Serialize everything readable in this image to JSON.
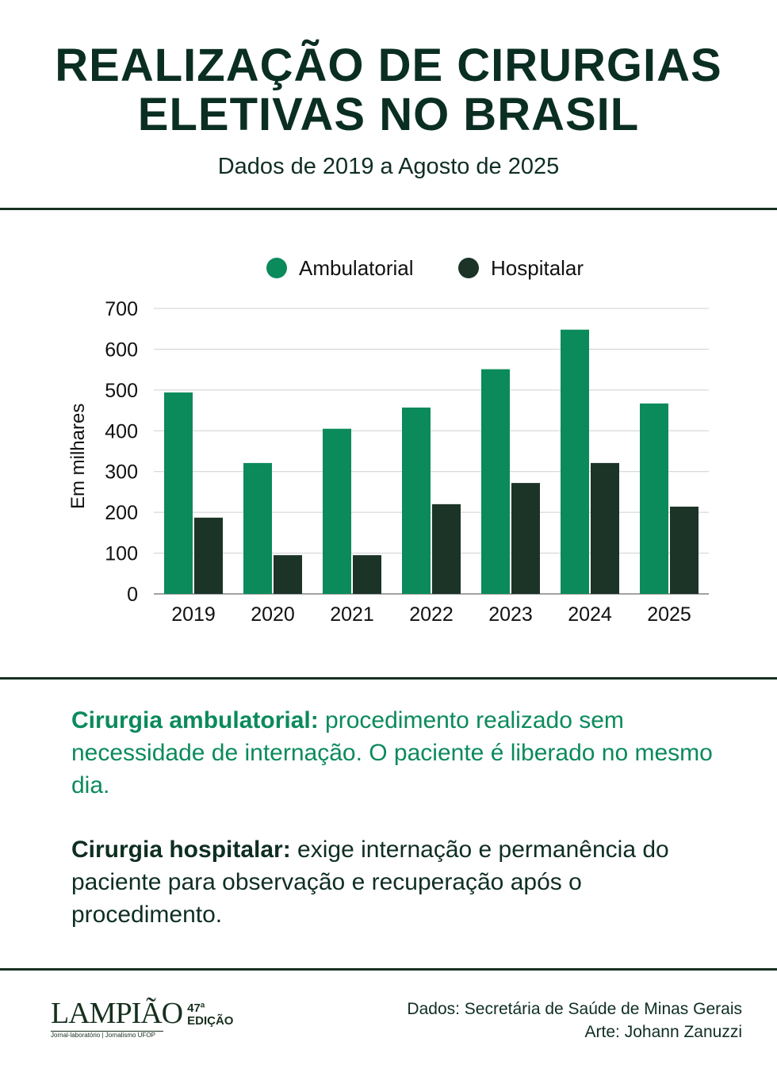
{
  "header": {
    "title_line1": "REALIZAÇÃO DE CIRURGIAS",
    "title_line2": "ELETIVAS NO BRASIL",
    "subtitle": "Dados de 2019 a Agosto de 2025"
  },
  "chart_data": {
    "type": "bar",
    "title": "",
    "xlabel": "",
    "ylabel": "Em milhares",
    "ylim": [
      0,
      700
    ],
    "yticks": [
      0,
      100,
      200,
      300,
      400,
      500,
      600,
      700
    ],
    "categories": [
      "2019",
      "2020",
      "2021",
      "2022",
      "2023",
      "2024",
      "2025"
    ],
    "series": [
      {
        "name": "Ambulatorial",
        "color": "#0b8a5c",
        "values": [
          494,
          321,
          405,
          457,
          551,
          648,
          467
        ]
      },
      {
        "name": "Hospitalar",
        "color": "#1c3328",
        "values": [
          187,
          95,
          95,
          220,
          272,
          321,
          214
        ]
      }
    ],
    "legend": "top-center",
    "grid": true
  },
  "definitions": [
    {
      "term": "Cirurgia ambulatorial:",
      "text": " procedimento realizado sem necessidade de internação. O paciente é liberado no mesmo dia.",
      "color": "#0b8a5c"
    },
    {
      "term": "Cirurgia hospitalar:",
      "text": " exige internação e permanência do paciente para observação e recuperação após o procedimento.",
      "color": "#0f2e22"
    }
  ],
  "footer": {
    "logo_name": "LAMPIÃO",
    "logo_tagline": "Jornal-laboratório | Jornalismo UFOP",
    "edition_number": "47ª",
    "edition_label": "EDIÇÃO",
    "source": "Dados: Secretária de Saúde de Minas Gerais",
    "art": "Arte: Johann Zanuzzi"
  }
}
